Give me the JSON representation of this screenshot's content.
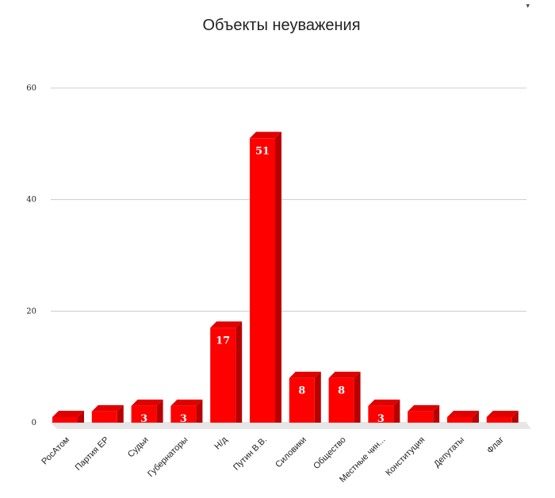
{
  "corner_marker": "▾",
  "chart_data": {
    "type": "bar",
    "title": "Объекты неуважения",
    "categories": [
      "РосАтом",
      "Партия ЕР",
      "Судьи",
      "Губернаторы",
      "Н/д",
      "Путин В.В.",
      "Силовики",
      "Общество",
      "Местные чин...",
      "Конституция",
      "Депутаты",
      "Флаг"
    ],
    "values": [
      1,
      2,
      3,
      3,
      17,
      51,
      8,
      8,
      3,
      2,
      1,
      1
    ],
    "data_labels": [
      "",
      "",
      "3",
      "3",
      "17",
      "51",
      "8",
      "8",
      "3",
      "",
      "",
      ""
    ],
    "yticks": [
      0,
      20,
      40,
      60
    ],
    "ylim": [
      0,
      60
    ],
    "grid": true,
    "legend": "none",
    "colors": {
      "bar_front": "#ff0000",
      "bar_side": "#b80000",
      "bar_top": "#e00000",
      "floor": "#e6e6e6"
    }
  }
}
